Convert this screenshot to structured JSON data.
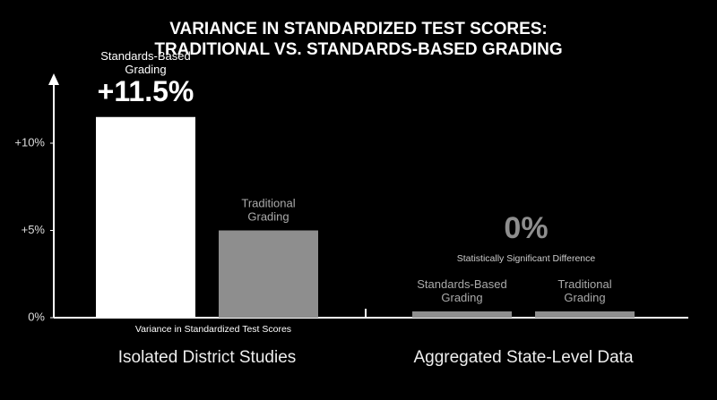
{
  "chart_data": {
    "type": "bar",
    "title": [
      "VARIANCE IN STANDARDIZED TEST SCORES:",
      "TRADITIONAL VS. STANDARDS-BASED GRADING"
    ],
    "categories": [
      "Isolated District Studies",
      "Aggregated State-Level Data"
    ],
    "series": [
      {
        "name": "Standards-Based Grading",
        "colors": [
          "#ffffff",
          "#8e8e8e"
        ],
        "values": [
          11.5,
          0
        ],
        "value_labels": [
          "+11.5%",
          null
        ]
      },
      {
        "name": "Traditional Grading",
        "colors": [
          "#8e8e8e",
          "#8e8e8e"
        ],
        "values": [
          5,
          0
        ]
      }
    ],
    "difference": {
      "value": 0,
      "label": "0%",
      "note": "Statistically Significant Difference"
    },
    "ylabel": "Variance in Standardized Test Scores",
    "ylim": [
      0,
      14
    ],
    "yticks": [
      {
        "value": 0,
        "label": "0%"
      },
      {
        "value": 5,
        "label": "+5%"
      },
      {
        "value": 10,
        "label": "+10%"
      }
    ],
    "grid": false
  }
}
